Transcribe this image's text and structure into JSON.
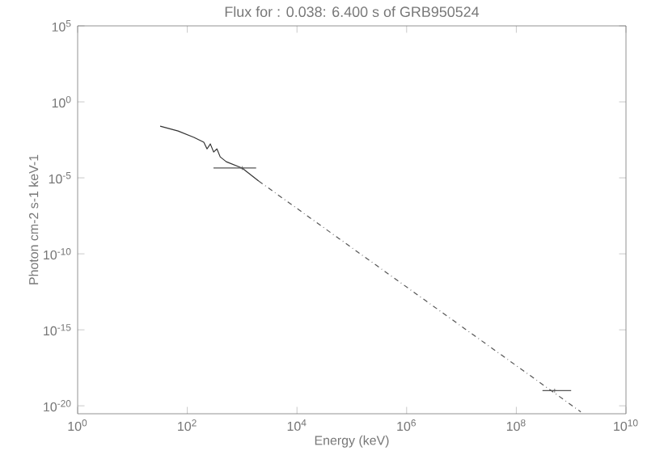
{
  "chart_data": {
    "type": "line",
    "title": "Flux for : 0.038: 6.400 s of GRB950524",
    "xlabel": "Energy (keV)",
    "ylabel": "Photon cm-2 s-1 keV-1",
    "log": "xy",
    "xlim": [
      1,
      10000000000
    ],
    "ylim": [
      3e-21,
      100000
    ],
    "xticks": [
      {
        "value": 1,
        "label": "10$^{0}$"
      },
      {
        "value": 100,
        "label": "10$^{2}$"
      },
      {
        "value": 10000,
        "label": "10$^{4}$"
      },
      {
        "value": 1000000,
        "label": "10$^{6}$"
      },
      {
        "value": 100000000,
        "label": "10$^{8}$"
      },
      {
        "value": 10000000000,
        "label": "10$^{10}$"
      }
    ],
    "yticks": [
      {
        "value": 1e-20,
        "label": "10$^{-20}$"
      },
      {
        "value": 1e-15,
        "label": "10$^{-15}$"
      },
      {
        "value": 1e-10,
        "label": "10$^{-10}$"
      },
      {
        "value": 1e-05,
        "label": "10$^{-5}$"
      },
      {
        "value": 1,
        "label": "10$^{0}$"
      },
      {
        "value": 100000,
        "label": "10$^{5}$"
      }
    ],
    "series": [
      {
        "color": "#333333",
        "line_style": "solid",
        "x": [
          32,
          68,
          132,
          200,
          229,
          263,
          302,
          347,
          398,
          513,
          1000,
          2000
        ],
        "values": [
          0.025,
          0.012,
          0.0046,
          0.0022,
          0.0008,
          0.0017,
          0.0005,
          0.0008,
          0.00024,
          0.000115,
          4.4e-05,
          6.2e-06
        ]
      },
      {
        "color": "#555555",
        "line_style": "dashed",
        "x": [
          2000,
          1500000000
        ],
        "values": [
          6.2e-06,
          4e-21
        ]
      },
      {
        "type": "scatter",
        "color": "#555555",
        "marker": "cross",
        "x": [
          1000,
          500000000
        ],
        "values": [
          4.4e-05,
          1e-19
        ],
        "xerrors": [
          [
            300,
            1800
          ],
          [
            300000000,
            1000000000
          ]
        ]
      }
    ]
  }
}
